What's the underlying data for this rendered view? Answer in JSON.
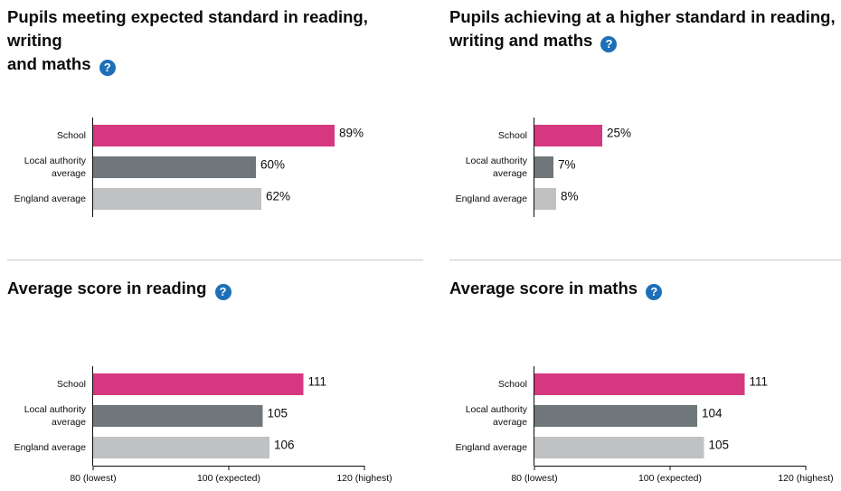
{
  "colors": {
    "school": "#d53880",
    "local_authority": "#6f777b",
    "england": "#bfc1c3",
    "axis": "#0b0c0c",
    "help_icon": "#1d70b8"
  },
  "help_icon_glyph": "?",
  "chart_data": [
    {
      "type": "bar",
      "orientation": "horizontal",
      "title": "Pupils meeting expected standard in reading, writing and maths",
      "title_lines": [
        "Pupils meeting expected standard in reading, writing",
        "and maths"
      ],
      "categories": [
        [
          "School"
        ],
        [
          "Local authority",
          "average"
        ],
        [
          "England average"
        ]
      ],
      "values": [
        89,
        60,
        62
      ],
      "value_labels": [
        "89%",
        "60%",
        "62%"
      ],
      "xlim": [
        0,
        100
      ],
      "ticks": []
    },
    {
      "type": "bar",
      "orientation": "horizontal",
      "title": "Pupils achieving at a higher standard in reading, writing and maths",
      "title_lines": [
        "Pupils achieving at a higher standard in reading,",
        "writing and maths"
      ],
      "categories": [
        [
          "School"
        ],
        [
          "Local authority",
          "average"
        ],
        [
          "England average"
        ]
      ],
      "values": [
        25,
        7,
        8
      ],
      "value_labels": [
        "25%",
        "7%",
        "8%"
      ],
      "xlim": [
        0,
        100
      ],
      "ticks": []
    },
    {
      "type": "bar",
      "orientation": "horizontal",
      "title": "Average score in reading",
      "title_lines": [
        "Average score in reading"
      ],
      "categories": [
        [
          "School"
        ],
        [
          "Local authority",
          "average"
        ],
        [
          "England average"
        ]
      ],
      "values": [
        111,
        105,
        106
      ],
      "value_labels": [
        "111",
        "105",
        "106"
      ],
      "xlim": [
        80,
        120
      ],
      "ticks": [
        {
          "value": 80,
          "label": "80 (lowest)"
        },
        {
          "value": 100,
          "label": "100 (expected)"
        },
        {
          "value": 120,
          "label": "120 (highest)"
        }
      ]
    },
    {
      "type": "bar",
      "orientation": "horizontal",
      "title": "Average score in maths",
      "title_lines": [
        "Average score in maths"
      ],
      "categories": [
        [
          "School"
        ],
        [
          "Local authority",
          "average"
        ],
        [
          "England average"
        ]
      ],
      "values": [
        111,
        104,
        105
      ],
      "value_labels": [
        "111",
        "104",
        "105"
      ],
      "xlim": [
        80,
        120
      ],
      "ticks": [
        {
          "value": 80,
          "label": "80 (lowest)"
        },
        {
          "value": 100,
          "label": "100 (expected)"
        },
        {
          "value": 120,
          "label": "120 (highest)"
        }
      ]
    }
  ]
}
